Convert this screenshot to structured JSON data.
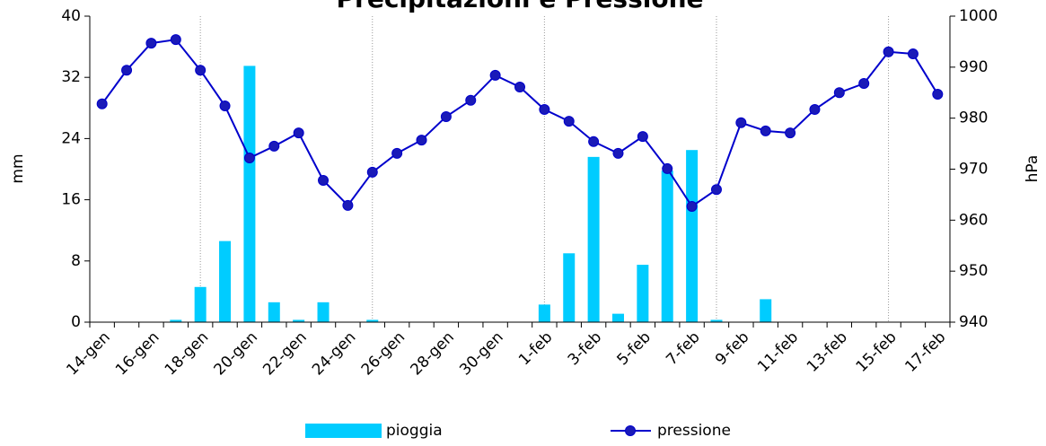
{
  "chart_data": {
    "type": "bar-line",
    "title": "Precipitazioni e Pressione",
    "y_label": "mm",
    "y2_label": "hPa",
    "categories": [
      "14-gen",
      null,
      "16-gen",
      null,
      "18-gen",
      null,
      "20-gen",
      null,
      "22-gen",
      null,
      "24-gen",
      null,
      "26-gen",
      null,
      "28-gen",
      null,
      "30-gen",
      null,
      "1-feb",
      null,
      "3-feb",
      null,
      "5-feb",
      null,
      "7-feb",
      null,
      "9-feb",
      null,
      "11-feb",
      null,
      "13-feb",
      null,
      "15-feb",
      null,
      "17-feb"
    ],
    "series": [
      {
        "name": "pioggia",
        "type": "bar",
        "color": "#00ccff",
        "values": [
          0,
          0,
          0,
          0.3,
          4.6,
          10.6,
          33.5,
          2.6,
          0.3,
          2.6,
          0,
          0.3,
          0,
          0,
          0,
          0,
          0,
          0,
          2.3,
          9.0,
          21.6,
          1.1,
          7.5,
          19.8,
          22.5,
          0.3,
          0,
          3.0,
          0,
          0,
          0,
          0,
          0,
          0,
          0
        ]
      },
      {
        "name": "pressione",
        "type": "line",
        "axis": "y2",
        "color": "#0000cc",
        "values": [
          982.8,
          989.4,
          994.7,
          995.4,
          989.4,
          982.4,
          972.2,
          974.5,
          977.1,
          967.8,
          962.9,
          969.4,
          973.1,
          975.7,
          980.3,
          983.5,
          988.4,
          986.1,
          981.7,
          979.4,
          975.4,
          973.1,
          976.4,
          970.1,
          962.7,
          966.0,
          979.1,
          977.5,
          977.1,
          981.7,
          985.0,
          986.8,
          993.0,
          992.6,
          984.7
        ]
      }
    ],
    "ylim": [
      0,
      40
    ],
    "yticks": [
      0,
      8,
      16,
      24,
      32,
      40
    ],
    "y2lim": [
      940,
      1000
    ],
    "y2ticks": [
      940,
      950,
      960,
      970,
      980,
      990,
      1000
    ],
    "legend": "bottom"
  }
}
